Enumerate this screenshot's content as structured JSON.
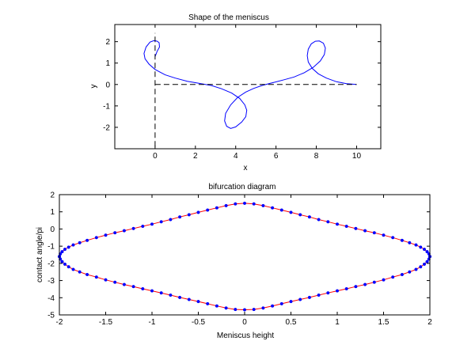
{
  "chart_data": [
    {
      "type": "line",
      "title": "Shape of the meniscus",
      "xlabel": "x",
      "ylabel": "y",
      "xlim": [
        -2,
        11.2
      ],
      "ylim": [
        -3,
        2.8
      ],
      "xticks": [
        0,
        2,
        4,
        6,
        8,
        10
      ],
      "yticks": [
        -2,
        -1,
        0,
        1,
        2
      ],
      "xticklabels": [
        "0",
        "2",
        "4",
        "6",
        "8",
        "10"
      ],
      "yticklabels": [
        "-2",
        "-1",
        "0",
        "1",
        "2"
      ],
      "grid": false,
      "series": [
        {
          "color": "#0000ff",
          "style": "solid",
          "x": [
            0.0,
            0.1,
            0.22,
            0.2,
            0.1,
            -0.05,
            -0.25,
            -0.45,
            -0.55,
            -0.5,
            -0.3,
            0.0,
            0.5,
            1.0,
            1.6,
            2.2,
            2.8,
            3.3,
            3.8,
            4.2,
            4.45,
            4.55,
            4.5,
            4.3,
            4.0,
            3.75,
            3.55,
            3.45,
            3.5,
            3.75,
            4.1,
            4.5,
            4.9,
            5.3,
            5.7,
            6.0,
            6.4,
            6.9,
            7.4,
            7.85,
            8.2,
            8.4,
            8.45,
            8.35,
            8.15,
            7.95,
            7.75,
            7.6,
            7.55,
            7.6,
            7.8,
            8.1,
            8.5,
            9.0,
            9.5,
            10.0
          ],
          "y": [
            1.3,
            1.55,
            1.75,
            1.95,
            2.02,
            2.05,
            1.98,
            1.75,
            1.45,
            1.2,
            0.95,
            0.7,
            0.45,
            0.3,
            0.15,
            0.05,
            -0.05,
            -0.2,
            -0.4,
            -0.65,
            -0.95,
            -1.2,
            -1.5,
            -1.75,
            -1.98,
            -2.05,
            -1.95,
            -1.7,
            -1.35,
            -0.95,
            -0.6,
            -0.35,
            -0.18,
            -0.05,
            0.05,
            0.12,
            0.22,
            0.35,
            0.55,
            0.8,
            1.1,
            1.4,
            1.7,
            1.93,
            2.03,
            2.02,
            1.9,
            1.65,
            1.35,
            1.05,
            0.75,
            0.5,
            0.3,
            0.13,
            0.04,
            0.0
          ]
        },
        {
          "color": "#000000",
          "style": "dashed",
          "x": [
            0,
            0
          ],
          "y": [
            -2.9,
            2.4
          ]
        },
        {
          "color": "#000000",
          "style": "dashed",
          "x": [
            0,
            10
          ],
          "y": [
            0,
            0
          ]
        }
      ]
    },
    {
      "type": "scatter",
      "title": "bifurcation diagram",
      "xlabel": "Meniscus height",
      "ylabel": "contact angle/pi",
      "xlim": [
        -2,
        2
      ],
      "ylim": [
        -5,
        2
      ],
      "xticks": [
        -2,
        -1.5,
        -1,
        -0.5,
        0,
        0.5,
        1,
        1.5,
        2
      ],
      "yticks": [
        -5,
        -4,
        -3,
        -2,
        -1,
        0,
        1,
        2
      ],
      "xticklabels": [
        "-2",
        "-1.5",
        "-1",
        "-0.5",
        "0",
        "0.5",
        "1",
        "1.5",
        "2"
      ],
      "yticklabels": [
        "-5",
        "-4",
        "-3",
        "-2",
        "-1",
        "0",
        "1",
        "2"
      ],
      "grid": false,
      "marker_color": "#0000ff",
      "line_color": "#ff0000",
      "upper_branch": {
        "x": [
          -2.0,
          -1.99,
          -1.97,
          -1.94,
          -1.9,
          -1.85,
          -1.78,
          -1.7,
          -1.6,
          -1.5,
          -1.4,
          -1.3,
          -1.2,
          -1.1,
          -1.0,
          -0.9,
          -0.8,
          -0.7,
          -0.6,
          -0.5,
          -0.4,
          -0.3,
          -0.2,
          -0.1,
          0.0,
          0.1,
          0.2,
          0.3,
          0.4,
          0.5,
          0.6,
          0.7,
          0.8,
          0.9,
          1.0,
          1.1,
          1.2,
          1.3,
          1.4,
          1.5,
          1.6,
          1.7,
          1.78,
          1.85,
          1.9,
          1.94,
          1.97,
          1.99,
          2.0
        ],
        "y": [
          -1.6,
          -1.45,
          -1.32,
          -1.18,
          -1.06,
          -0.93,
          -0.8,
          -0.66,
          -0.5,
          -0.36,
          -0.22,
          -0.1,
          0.03,
          0.16,
          0.28,
          0.42,
          0.55,
          0.7,
          0.83,
          0.97,
          1.1,
          1.23,
          1.36,
          1.46,
          1.5,
          1.46,
          1.36,
          1.23,
          1.1,
          0.97,
          0.83,
          0.7,
          0.55,
          0.42,
          0.28,
          0.16,
          0.03,
          -0.1,
          -0.22,
          -0.36,
          -0.5,
          -0.66,
          -0.8,
          -0.93,
          -1.06,
          -1.18,
          -1.32,
          -1.45,
          -1.6
        ]
      },
      "lower_branch": {
        "x": [
          -2.0,
          -1.99,
          -1.97,
          -1.94,
          -1.9,
          -1.85,
          -1.78,
          -1.7,
          -1.6,
          -1.5,
          -1.4,
          -1.3,
          -1.2,
          -1.1,
          -1.0,
          -0.9,
          -0.8,
          -0.7,
          -0.6,
          -0.5,
          -0.4,
          -0.3,
          -0.2,
          -0.1,
          0.0,
          0.1,
          0.2,
          0.3,
          0.4,
          0.5,
          0.6,
          0.7,
          0.8,
          0.9,
          1.0,
          1.1,
          1.2,
          1.3,
          1.4,
          1.5,
          1.6,
          1.7,
          1.78,
          1.85,
          1.9,
          1.94,
          1.97,
          1.99,
          2.0
        ],
        "y": [
          -1.6,
          -1.75,
          -1.9,
          -2.05,
          -2.2,
          -2.35,
          -2.5,
          -2.65,
          -2.8,
          -2.96,
          -3.1,
          -3.23,
          -3.35,
          -3.48,
          -3.6,
          -3.72,
          -3.85,
          -3.98,
          -4.1,
          -4.22,
          -4.35,
          -4.48,
          -4.6,
          -4.68,
          -4.7,
          -4.68,
          -4.6,
          -4.48,
          -4.35,
          -4.22,
          -4.1,
          -3.98,
          -3.85,
          -3.72,
          -3.6,
          -3.48,
          -3.35,
          -3.23,
          -3.1,
          -2.96,
          -2.8,
          -2.65,
          -2.5,
          -2.35,
          -2.2,
          -2.05,
          -1.9,
          -1.75,
          -1.6
        ]
      }
    }
  ]
}
